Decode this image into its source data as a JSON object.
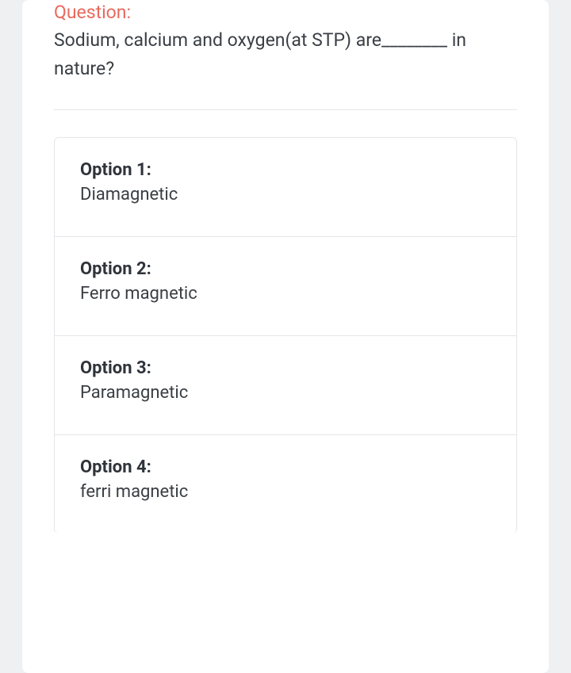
{
  "question": {
    "label": "Question:",
    "text": "Sodium, calcium and oxygen(at STP) are________ in nature?",
    "label_color": "#e86a5e",
    "text_color": "#3a3f45"
  },
  "options": [
    {
      "label": "Option 1:",
      "text": "Diamagnetic"
    },
    {
      "label": "Option 2:",
      "text": "Ferro magnetic"
    },
    {
      "label": "Option 3:",
      "text": "Paramagnetic"
    },
    {
      "label": "Option 4:",
      "text": "ferri magnetic"
    }
  ],
  "style": {
    "background_color": "#eef0f2",
    "card_background": "#ffffff",
    "border_color": "#e3e6e9",
    "option_label_color": "#2f333a",
    "option_text_color": "#3a3f45",
    "question_fontsize": 23,
    "option_fontsize": 22
  }
}
